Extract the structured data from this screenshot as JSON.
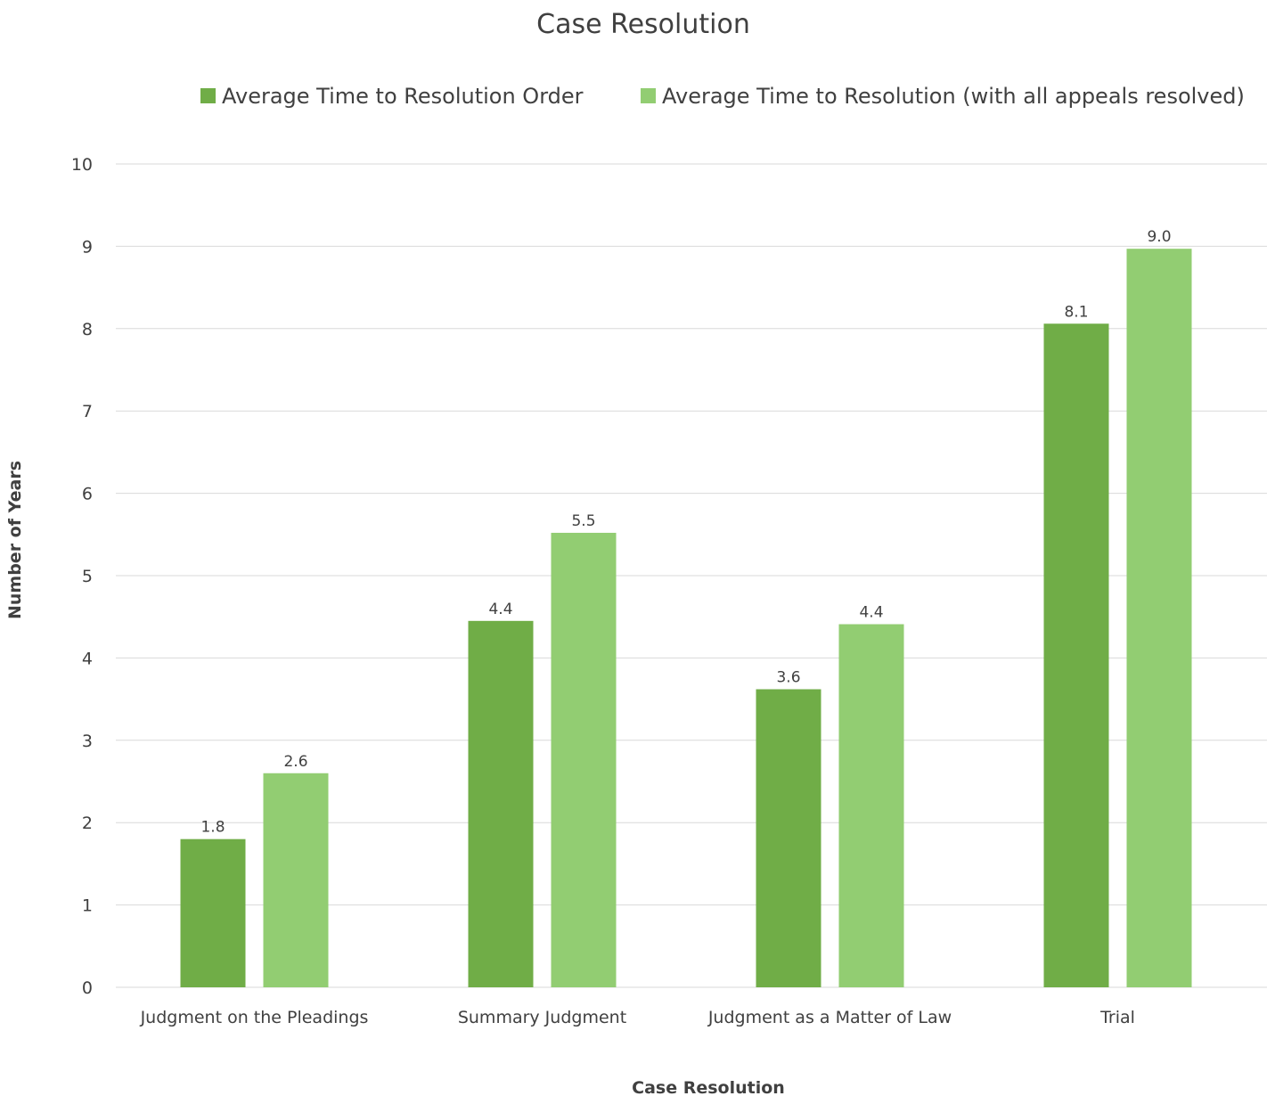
{
  "chart_data": {
    "type": "bar",
    "title": "Case Resolution",
    "xlabel": "Case Resolution",
    "ylabel": "Number of Years",
    "categories": [
      "Judgment on the Pleadings",
      "Summary Judgment",
      "Judgment as a Matter of Law",
      "Trial"
    ],
    "series": [
      {
        "name": "Average Time to Resolution Order",
        "color": "#70ad47",
        "values": [
          1.8,
          4.45,
          3.62,
          8.06
        ],
        "labels": [
          "1.8",
          "4.4",
          "3.6",
          "8.1"
        ]
      },
      {
        "name": "Average Time to Resolution (with all appeals resolved)",
        "color": "#92cd72",
        "values": [
          2.6,
          5.52,
          4.41,
          8.97
        ],
        "labels": [
          "2.6",
          "5.5",
          "4.4",
          "9.0"
        ]
      }
    ],
    "yticks": [
      "0",
      "1",
      "2",
      "3",
      "4",
      "5",
      "6",
      "7",
      "8",
      "9",
      "10"
    ],
    "ylim": [
      0,
      10
    ],
    "grid": true,
    "legend_position": "top"
  }
}
